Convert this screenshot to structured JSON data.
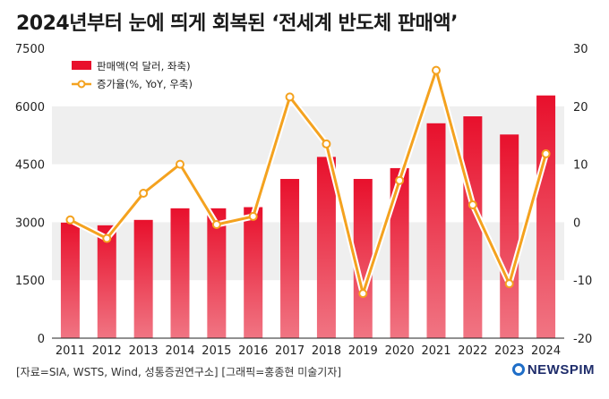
{
  "title": "2024년부터 눈에 띄게 회복된 ‘전세계 반도체 판매액’",
  "footer": {
    "source": "[자료=SIA, WSTS, Wind, 성통증권연구소] [그래픽=홍종현 미술기자]",
    "brand": "NEWSPIM"
  },
  "colors": {
    "bar_top": "#e8102c",
    "bar_bottom": "#f07583",
    "line": "#f4a21f",
    "band": "#efefef"
  },
  "chart_data": {
    "type": "bar",
    "categories": [
      "2011",
      "2012",
      "2013",
      "2014",
      "2015",
      "2016",
      "2017",
      "2018",
      "2019",
      "2020",
      "2021",
      "2022",
      "2023",
      "2024"
    ],
    "series": [
      {
        "name": "판매액(억 달러, 좌축)",
        "type": "bar",
        "axis": "left",
        "values": [
          2990,
          2920,
          3060,
          3360,
          3360,
          3390,
          4120,
          4690,
          4120,
          4400,
          5560,
          5740,
          5270,
          6280
        ]
      },
      {
        "name": "증가율(%, YoY, 우축)",
        "type": "line",
        "axis": "right",
        "values": [
          0.4,
          -2.8,
          5.0,
          10.0,
          -0.4,
          1.0,
          21.6,
          13.5,
          -12.3,
          7.2,
          26.2,
          3.0,
          -10.6,
          11.8
        ]
      }
    ],
    "y_left": {
      "min": 0,
      "max": 7500,
      "ticks": [
        "0",
        "1500",
        "3000",
        "4500",
        "6000",
        "7500"
      ]
    },
    "y_right": {
      "min": -20,
      "max": 30,
      "ticks": [
        "-20",
        "-10",
        "0",
        "10",
        "20",
        "30"
      ]
    },
    "legend_position": "top-left",
    "grid": "alternating-bands"
  }
}
